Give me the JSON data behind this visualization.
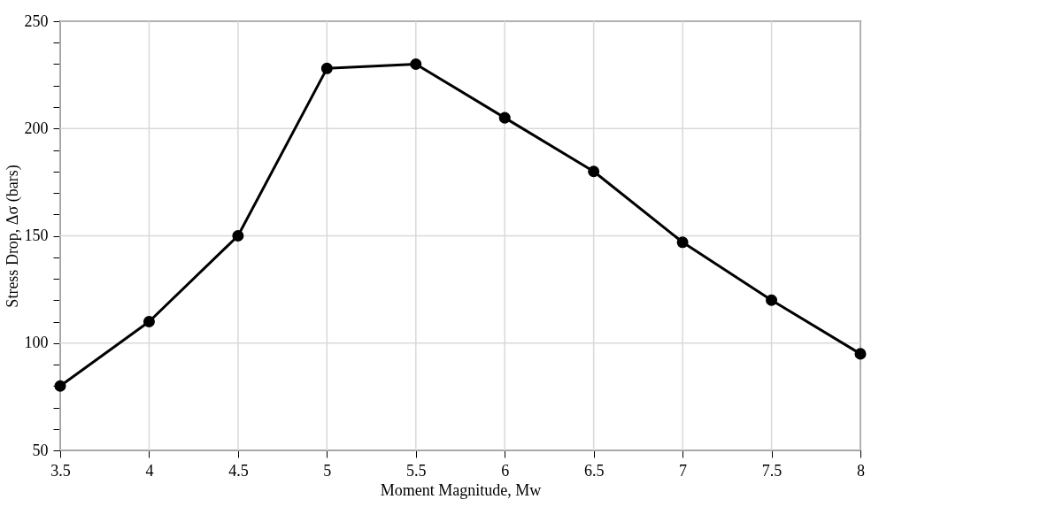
{
  "chart_data": {
    "type": "line",
    "xlabel": "Moment Magnitude, Mw",
    "ylabel": "Stress Drop, Δσ (bars)",
    "x": [
      3.5,
      4,
      4.5,
      5,
      5.5,
      6,
      6.5,
      7,
      7.5,
      8
    ],
    "series": [
      {
        "color": "#000000",
        "values": [
          80,
          110,
          150,
          228,
          230,
          205,
          180,
          147,
          120,
          95
        ]
      }
    ],
    "xlim": [
      3.5,
      8
    ],
    "xticks": [
      3.5,
      4,
      4.5,
      5,
      5.5,
      6,
      6.5,
      7,
      7.5,
      8
    ],
    "ylim": [
      50,
      250
    ],
    "yticks": [
      50,
      {
        "value": 60,
        "label": null
      },
      {
        "value": 70,
        "label": null
      },
      {
        "value": 80,
        "label": null
      },
      {
        "value": 90,
        "label": null
      },
      100,
      {
        "value": 110,
        "label": null
      },
      {
        "value": 120,
        "label": null
      },
      {
        "value": 130,
        "label": null
      },
      {
        "value": 140,
        "label": null
      },
      150,
      {
        "value": 160,
        "label": null
      },
      {
        "value": 170,
        "label": null
      },
      {
        "value": 180,
        "label": null
      },
      {
        "value": 190,
        "label": null
      },
      200,
      {
        "value": 210,
        "label": null
      },
      {
        "value": 220,
        "label": null
      },
      {
        "value": 230,
        "label": null
      },
      {
        "value": 240,
        "label": null
      },
      250
    ],
    "grid": true,
    "marker": "circle",
    "line_style": "solid"
  }
}
